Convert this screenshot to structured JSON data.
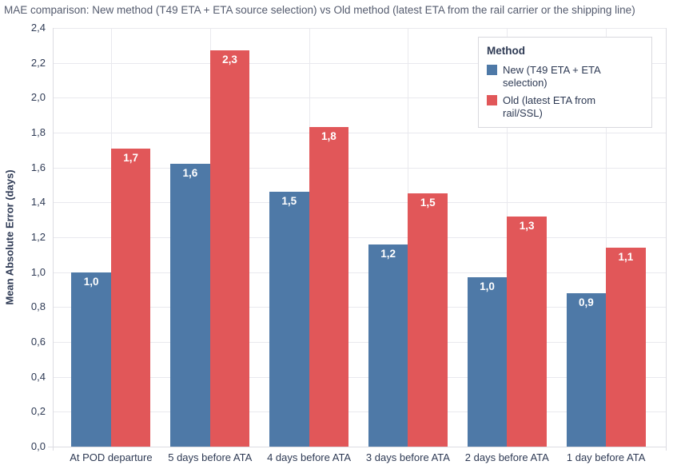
{
  "title": "MAE comparison: New method (T49 ETA + ETA source selection) vs Old method (latest ETA from the rail carrier or the shipping line)",
  "chart_data": {
    "type": "bar",
    "categories": [
      "At POD departure",
      "5 days before ATA",
      "4 days before ATA",
      "3 days before ATA",
      "2 days before ATA",
      "1 day before ATA"
    ],
    "series": [
      {
        "name": "New (T49 ETA + ETA selection)",
        "color": "#4E79A7",
        "values": [
          1.0,
          1.62,
          1.46,
          1.16,
          0.97,
          0.88
        ],
        "labels": [
          "1,0",
          "1,6",
          "1,5",
          "1,2",
          "1,0",
          "0,9"
        ]
      },
      {
        "name": "Old (latest ETA from rail/SSL)",
        "color": "#E15759",
        "values": [
          1.71,
          2.27,
          1.83,
          1.45,
          1.32,
          1.14
        ],
        "labels": [
          "1,7",
          "2,3",
          "1,8",
          "1,5",
          "1,3",
          "1,1"
        ]
      }
    ],
    "ylabel": "Mean Absolute Error (days)",
    "ylim": [
      0,
      2.4
    ],
    "ytick_step": 0.2,
    "ytick_labels": [
      "0,0",
      "0,2",
      "0,4",
      "0,6",
      "0,8",
      "1,0",
      "1,2",
      "1,4",
      "1,6",
      "1,8",
      "2,0",
      "2,2",
      "2,4"
    ],
    "legend": {
      "title": "Method",
      "position": "top-right"
    },
    "grid": true
  }
}
